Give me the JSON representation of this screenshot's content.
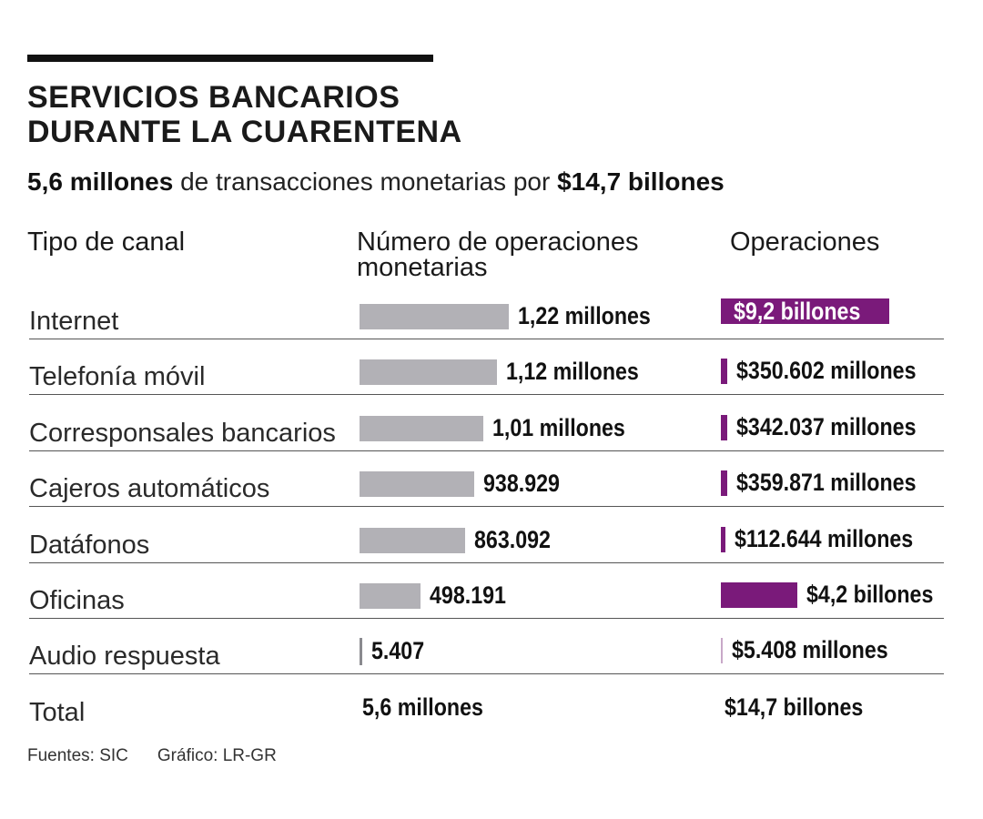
{
  "header": {
    "title_line1": "SERVICIOS BANCARIOS",
    "title_line2": "DURANTE LA CUARENTENA",
    "subtitle_bold1": "5,6 millones",
    "subtitle_mid": " de transacciones monetarias por ",
    "subtitle_bold2": "$14,7 billones"
  },
  "columns": {
    "canal": "Tipo de canal",
    "num_line1": "Número de operaciones",
    "num_line2": "monetarias",
    "op": "Operaciones"
  },
  "rows": [
    {
      "label": "Internet",
      "num_label": "1,22 millones",
      "op_label": "$9,2 billones"
    },
    {
      "label": "Telefonía móvil",
      "num_label": "1,12 millones",
      "op_label": "$350.602 millones"
    },
    {
      "label": "Corresponsales bancarios",
      "num_label": "1,01 millones",
      "op_label": "$342.037 millones"
    },
    {
      "label": "Cajeros automáticos",
      "num_label": "938.929",
      "op_label": "$359.871 millones"
    },
    {
      "label": "Datáfonos",
      "num_label": "863.092",
      "op_label": "$112.644 millones"
    },
    {
      "label": "Oficinas",
      "num_label": "498.191",
      "op_label": "$4,2 billones"
    },
    {
      "label": "Audio respuesta",
      "num_label": "5.407",
      "op_label": "$5.408 millones"
    }
  ],
  "total": {
    "label": "Total",
    "num_label": "5,6 millones",
    "op_label": "$14,7 billones"
  },
  "footer": {
    "sources": "Fuentes: SIC",
    "credit": "Gráfico: LR-GR"
  },
  "colors": {
    "gray_bar": "#b2b1b6",
    "purple_bar": "#7a1a7a",
    "text": "#1a1a1a"
  },
  "chart_data": {
    "type": "bar",
    "title": "SERVICIOS BANCARIOS DURANTE LA CUARENTENA",
    "subtitle": "5,6 millones de transacciones monetarias por $14,7 billones",
    "categories": [
      "Internet",
      "Telefonía móvil",
      "Corresponsales bancarios",
      "Cajeros automáticos",
      "Datáfonos",
      "Oficinas",
      "Audio respuesta"
    ],
    "series": [
      {
        "name": "Número de operaciones monetarias",
        "values": [
          1220000,
          1120000,
          1010000,
          938929,
          863092,
          498191,
          5407
        ]
      },
      {
        "name": "Operaciones",
        "values": [
          9200000,
          350602,
          342037,
          359871,
          112644,
          4200000,
          5408
        ]
      }
    ],
    "totals": [
      "5,6 millones",
      "$14,7 billones"
    ]
  }
}
